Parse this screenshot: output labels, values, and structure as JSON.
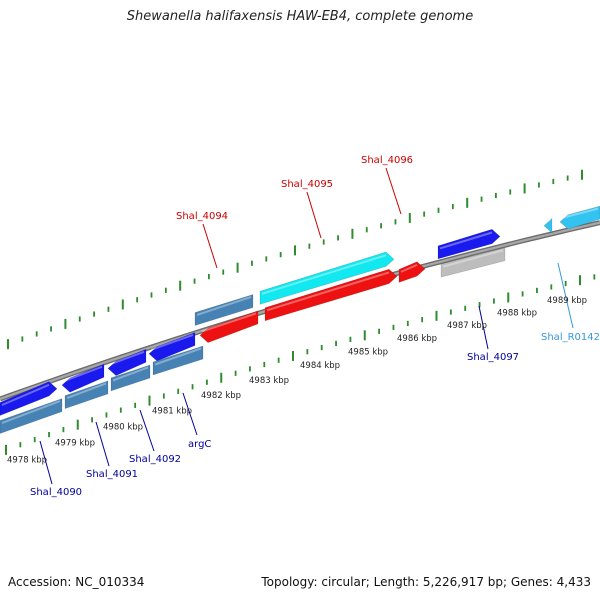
{
  "title": "Shewanella halifaxensis HAW-EB4, complete genome",
  "footer": {
    "accession": "Accession: NC_010334",
    "topology": "Topology: circular; Length: 5,226,917 bp; Genes: 4,433"
  },
  "colors": {
    "backbone": "#8a8a8a",
    "tick": "#2e8b2e",
    "gene_blue": "#1a1aee",
    "gene_steel": "#4682b4",
    "gene_red": "#ee1111",
    "gene_cyan": "#11e8f0",
    "gene_gray": "#bdbdbd",
    "gene_skyblue": "#33c3f0",
    "label_red": "#cc0000",
    "label_navy": "#000099",
    "label_sky": "#3399dd"
  },
  "kbp_labels": [
    "4978 kbp",
    "4979 kbp",
    "4980 kbp",
    "4981 kbp",
    "4982 kbp",
    "4983 kbp",
    "4984 kbp",
    "4985 kbp",
    "4986 kbp",
    "4987 kbp",
    "4988 kbp",
    "4989 kbp"
  ],
  "gene_labels": [
    {
      "name": "Shal_4094",
      "color": "label_red"
    },
    {
      "name": "Shal_4095",
      "color": "label_red"
    },
    {
      "name": "Shal_4096",
      "color": "label_red"
    },
    {
      "name": "Shal_4090",
      "color": "label_navy"
    },
    {
      "name": "Shal_4091",
      "color": "label_navy"
    },
    {
      "name": "Shal_4092",
      "color": "label_navy"
    },
    {
      "name": "argC",
      "color": "label_navy"
    },
    {
      "name": "Shal_4097",
      "color": "label_navy"
    },
    {
      "name": "Shal_R0142",
      "color": "label_sky"
    }
  ]
}
